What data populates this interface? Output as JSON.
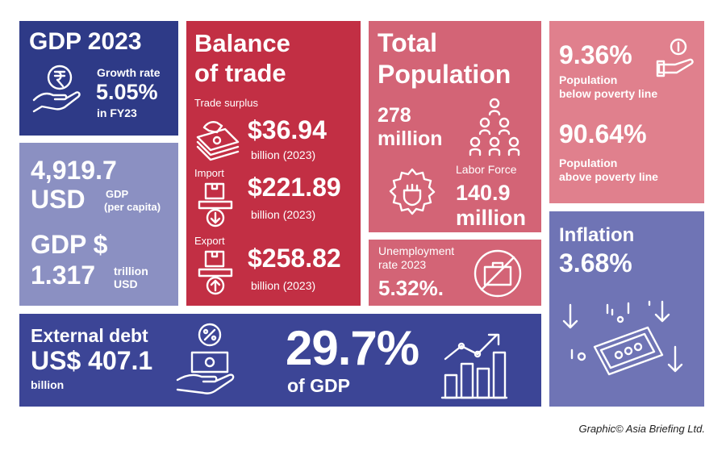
{
  "gdp": {
    "title": "GDP 2023",
    "growth_label": "Growth rate",
    "growth_value": "5.05%",
    "growth_period": "in FY23"
  },
  "per_capita": {
    "value_line1": "4,919.7",
    "value_line2": "USD",
    "note_line1": "GDP",
    "note_line2": "(per capita)",
    "gdp_label": "GDP $",
    "gdp_value": "1.317",
    "gdp_unit_line1": "trillion",
    "gdp_unit_line2": "USD"
  },
  "trade": {
    "title_line1": "Balance",
    "title_line2": "of trade",
    "surplus_label": "Trade surplus",
    "surplus_value": "$36.94",
    "surplus_unit": "billion (2023)",
    "import_label": "Import",
    "import_value": "$221.89",
    "import_unit": "billion (2023)",
    "export_label": "Export",
    "export_value": "$258.82",
    "export_unit": "billion (2023)"
  },
  "population": {
    "title_line1": "Total",
    "title_line2": "Population",
    "total_line1": "278",
    "total_line2": "million",
    "labor_label": "Labor Force",
    "labor_line1": "140.9",
    "labor_line2": "million"
  },
  "unemployment": {
    "label_line1": "Unemployment",
    "label_line2": "rate 2023",
    "value": "5.32%."
  },
  "poverty": {
    "below_value": "9.36%",
    "below_line1": "Population",
    "below_line2": "below poverty line",
    "above_value": "90.64%",
    "above_line1": "Population",
    "above_line2": "above poverty line"
  },
  "inflation": {
    "label": "Inflation",
    "value": "3.68%"
  },
  "debt": {
    "label": "External debt",
    "value": "US$ 407.1",
    "unit": "billion",
    "share": "29.7%",
    "share_label": "of GDP"
  },
  "credit": "Graphic© Asia Briefing Ltd.",
  "colors": {
    "navy": "#2e3a87",
    "periwinkle": "#8b90c2",
    "crimson": "#c22f44",
    "rose": "#d36476",
    "pink": "#e0808d",
    "blue": "#6f74b5",
    "indigo": "#3c4596"
  },
  "icons": [
    "rupee-hand-icon",
    "money-stack-icon",
    "import-box-icon",
    "export-box-icon",
    "people-network-icon",
    "gear-fist-icon",
    "no-job-icon",
    "coin-hand-icon",
    "falling-money-icon",
    "money-hand-icon",
    "bar-chart-up-icon"
  ]
}
